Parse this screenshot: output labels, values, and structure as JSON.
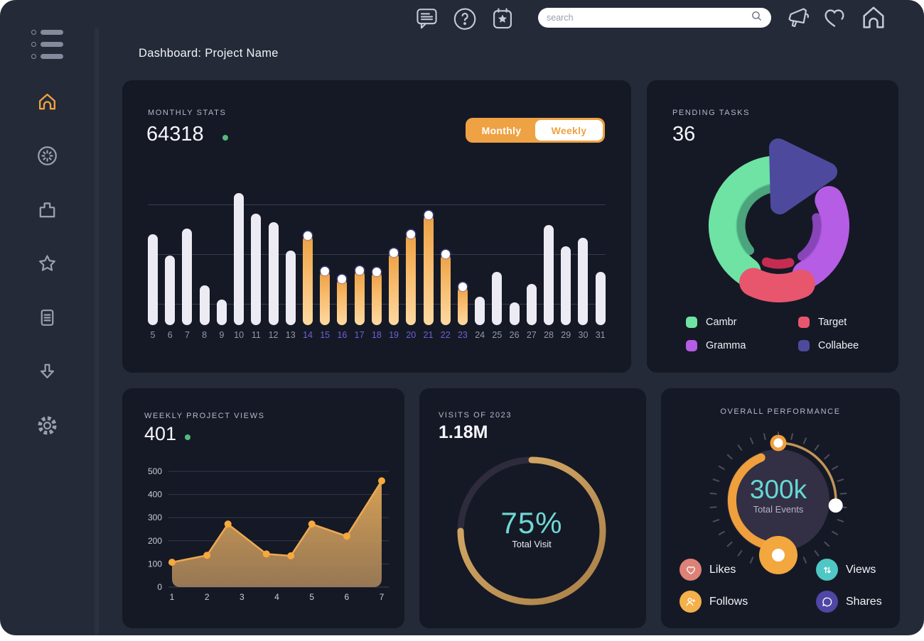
{
  "header": {
    "title": "Dashboard: Project Name"
  },
  "topbar": {
    "search_placeholder": "search",
    "icons": [
      "chat-icon",
      "help-icon",
      "calendar-star-icon",
      "megaphone-icon",
      "heart-icon",
      "home-icon"
    ]
  },
  "sidebar": {
    "items": [
      {
        "name": "home",
        "icon": "home-icon",
        "active": true
      },
      {
        "name": "activity",
        "icon": "loader-icon",
        "active": false
      },
      {
        "name": "projects",
        "icon": "bag-icon",
        "active": false
      },
      {
        "name": "favorites",
        "icon": "star-icon",
        "active": false
      },
      {
        "name": "documents",
        "icon": "document-icon",
        "active": false
      },
      {
        "name": "downloads",
        "icon": "arrow-down-icon",
        "active": false
      },
      {
        "name": "settings",
        "icon": "gear-icon",
        "active": false
      }
    ]
  },
  "monthly": {
    "label": "MONTHLY STATS",
    "value": "64318",
    "toggle_monthly": "Monthly",
    "toggle_weekly": "Weekly",
    "accent_color": "#efa243",
    "highlight_label_color": "#6e61d6"
  },
  "pending": {
    "label": "PENDING TASKS",
    "value": "36",
    "legend": [
      {
        "name": "Cambr",
        "color": "#6ee3a4"
      },
      {
        "name": "Target",
        "color": "#e8566e"
      },
      {
        "name": "Gramma",
        "color": "#b55de4"
      },
      {
        "name": "Collabee",
        "color": "#4d4a9e"
      }
    ]
  },
  "weekly": {
    "label": "WEEKLY PROJECT VIEWS",
    "value": "401"
  },
  "visits": {
    "label": "VISITS OF 2023",
    "value": "1.18M",
    "percent": "75%",
    "caption": "Total Visit"
  },
  "performance": {
    "label": "OVERALL PERFORMANCE",
    "value": "300k",
    "caption": "Total Events",
    "legend": [
      {
        "name": "Likes",
        "color": "#dd8277",
        "icon": "heart-icon"
      },
      {
        "name": "Views",
        "color": "#4fc7c4",
        "icon": "sort-arrows-icon"
      },
      {
        "name": "Follows",
        "color": "#f3b04b",
        "icon": "person-add-icon"
      },
      {
        "name": "Shares",
        "color": "#4f46a5",
        "icon": "chat-bubble-icon"
      }
    ]
  },
  "chart_data": [
    {
      "id": "monthly_bars",
      "type": "bar",
      "title": "Monthly Stats",
      "categories": [
        5,
        6,
        7,
        8,
        9,
        10,
        11,
        12,
        13,
        14,
        15,
        16,
        17,
        18,
        19,
        20,
        21,
        22,
        23,
        24,
        25,
        26,
        27,
        28,
        29,
        30,
        31
      ],
      "values": [
        128,
        98,
        136,
        56,
        36,
        186,
        157,
        145,
        105,
        126,
        76,
        65,
        77,
        75,
        102,
        128,
        155,
        100,
        54,
        40,
        75,
        32,
        58,
        141,
        111,
        123,
        75
      ],
      "highlight_range": [
        14,
        23
      ],
      "bar_color": "#ecebf3",
      "highlight_color": "#f0a644",
      "grid": true
    },
    {
      "id": "pending_donut",
      "type": "pie",
      "title": "Pending Tasks",
      "slices": [
        {
          "label": "Cambr",
          "color": "#6ee3a4",
          "inner_color": "#55bd8b",
          "percent": 36,
          "arc": [
            215,
            357
          ]
        },
        {
          "label": "Gramma",
          "color": "#b55de4",
          "inner_color": "#9c4ed2",
          "percent": 24,
          "arc": [
            63,
            151
          ]
        },
        {
          "label": "Target",
          "color": "#e8566e",
          "inner_color": "#e5305b",
          "percent": 14,
          "arc": [
            157,
            207
          ]
        },
        {
          "label": "Collabee",
          "color": "#4d4a9e",
          "percent": 26,
          "shape": "triangle"
        }
      ],
      "legend_position": "bottom"
    },
    {
      "id": "weekly_area",
      "type": "area",
      "title": "Weekly Project Views",
      "x": [
        1,
        2,
        2.6,
        3.7,
        4.4,
        5,
        6,
        7
      ],
      "y": [
        107,
        137,
        272,
        143,
        135,
        272,
        220,
        459
      ],
      "xticks": [
        1,
        2,
        3,
        4,
        5,
        6,
        7
      ],
      "yticks": [
        0,
        100,
        200,
        300,
        400,
        500
      ],
      "ylim": [
        0,
        500
      ],
      "line_color": "#efa950",
      "dot_color": "#f7a93d",
      "grid": true
    },
    {
      "id": "visits_ring",
      "type": "progress-ring",
      "title": "Visits of 2023",
      "percent": 75,
      "ring_color_start": "#ddb26c",
      "ring_color_end": "#a87e47",
      "track_color": "#2e2c3c"
    },
    {
      "id": "performance_gauge",
      "type": "gauge",
      "title": "Overall Performance",
      "value": "300k",
      "arc_color": "#ef9f3c",
      "thin_arc_color": "#c2945a",
      "face_color": "#332f45"
    }
  ]
}
